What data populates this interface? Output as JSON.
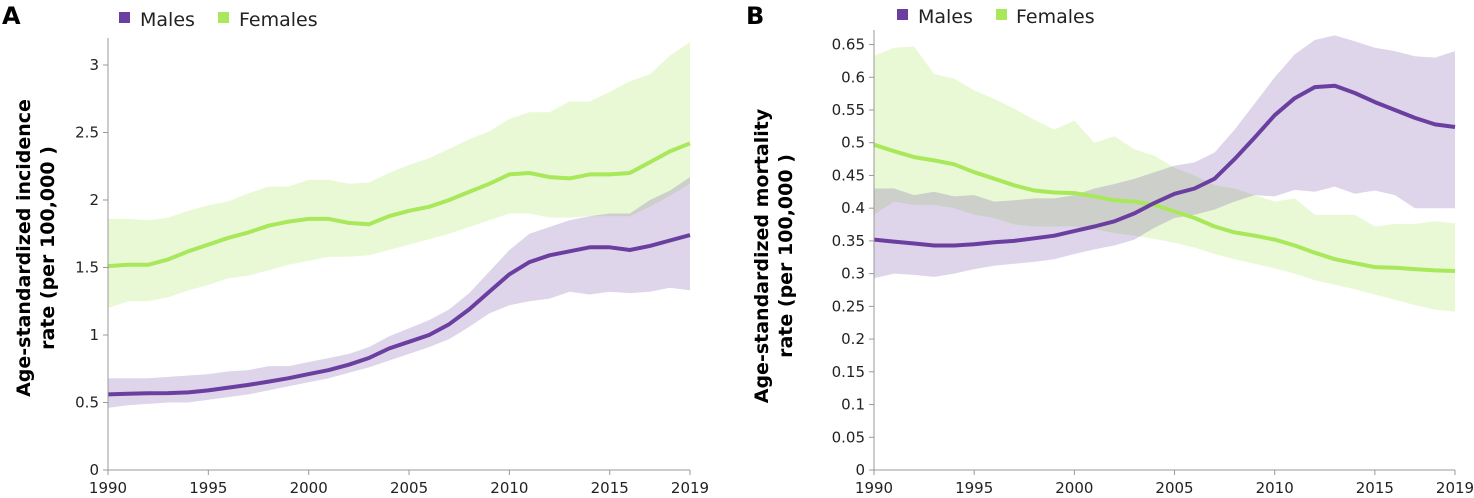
{
  "chart_data": [
    {
      "panel_label": "A",
      "type": "line",
      "ylabel": [
        "Age-standardized incidence",
        "rate (per 100,000 )"
      ],
      "ylim": [
        0,
        3.2
      ],
      "yticks": [
        "0",
        "0.5",
        "1",
        "1.5",
        "2",
        "2.5",
        "3"
      ],
      "xlim": [
        1990,
        2019
      ],
      "xticks": [
        "1990",
        "1995",
        "2000",
        "2005",
        "2010",
        "2015",
        "2019"
      ],
      "x": [
        1990,
        1991,
        1992,
        1993,
        1994,
        1995,
        1996,
        1997,
        1998,
        1999,
        2000,
        2001,
        2002,
        2003,
        2004,
        2005,
        2006,
        2007,
        2008,
        2009,
        2010,
        2011,
        2012,
        2013,
        2014,
        2015,
        2016,
        2017,
        2018,
        2019
      ],
      "series": [
        {
          "name": "Males",
          "color": "#6b3fa0",
          "values": [
            0.56,
            0.565,
            0.568,
            0.57,
            0.575,
            0.59,
            0.61,
            0.63,
            0.655,
            0.68,
            0.71,
            0.74,
            0.78,
            0.83,
            0.9,
            0.95,
            1.0,
            1.08,
            1.19,
            1.32,
            1.45,
            1.54,
            1.59,
            1.62,
            1.65,
            1.65,
            1.63,
            1.66,
            1.7,
            1.74
          ],
          "lower": [
            0.46,
            0.48,
            0.49,
            0.5,
            0.5,
            0.52,
            0.54,
            0.56,
            0.59,
            0.62,
            0.65,
            0.68,
            0.72,
            0.76,
            0.81,
            0.86,
            0.91,
            0.97,
            1.06,
            1.16,
            1.22,
            1.25,
            1.27,
            1.32,
            1.3,
            1.32,
            1.31,
            1.32,
            1.35,
            1.33
          ],
          "upper": [
            0.68,
            0.68,
            0.68,
            0.69,
            0.7,
            0.71,
            0.73,
            0.74,
            0.77,
            0.77,
            0.8,
            0.83,
            0.86,
            0.91,
            0.99,
            1.05,
            1.11,
            1.19,
            1.31,
            1.47,
            1.63,
            1.75,
            1.8,
            1.85,
            1.88,
            1.9,
            1.9,
            2.0,
            2.07,
            2.17
          ]
        },
        {
          "name": "Females",
          "color": "#a8e85a",
          "values": [
            1.51,
            1.52,
            1.52,
            1.56,
            1.62,
            1.67,
            1.72,
            1.76,
            1.81,
            1.84,
            1.86,
            1.86,
            1.83,
            1.82,
            1.88,
            1.92,
            1.95,
            2.0,
            2.06,
            2.12,
            2.19,
            2.2,
            2.17,
            2.16,
            2.19,
            2.19,
            2.2,
            2.28,
            2.36,
            2.42
          ],
          "lower": [
            1.2,
            1.25,
            1.25,
            1.28,
            1.33,
            1.37,
            1.42,
            1.44,
            1.48,
            1.52,
            1.55,
            1.58,
            1.58,
            1.59,
            1.63,
            1.67,
            1.71,
            1.75,
            1.8,
            1.85,
            1.9,
            1.9,
            1.87,
            1.87,
            1.88,
            1.88,
            1.88,
            1.95,
            2.03,
            2.12
          ],
          "upper": [
            1.86,
            1.86,
            1.85,
            1.87,
            1.92,
            1.96,
            1.99,
            2.05,
            2.1,
            2.1,
            2.15,
            2.15,
            2.12,
            2.13,
            2.2,
            2.26,
            2.31,
            2.38,
            2.45,
            2.51,
            2.6,
            2.65,
            2.65,
            2.73,
            2.73,
            2.8,
            2.88,
            2.93,
            3.07,
            3.17
          ]
        }
      ]
    },
    {
      "panel_label": "B",
      "type": "line",
      "ylabel": [
        "Age-standardized mortality",
        "rate (per 100,000 )"
      ],
      "ylim": [
        0,
        0.66
      ],
      "yticks": [
        "0",
        "0.05",
        "0.1",
        "0.15",
        "0.2",
        "0.25",
        "0.3",
        "0.35",
        "0.4",
        "0.45",
        "0.5",
        "0.55",
        "0.6",
        "0.65"
      ],
      "xlim": [
        1990,
        2019
      ],
      "xticks": [
        "1990",
        "1995",
        "2000",
        "2005",
        "2010",
        "2015",
        "2019"
      ],
      "x": [
        1990,
        1991,
        1992,
        1993,
        1994,
        1995,
        1996,
        1997,
        1998,
        1999,
        2000,
        2001,
        2002,
        2003,
        2004,
        2005,
        2006,
        2007,
        2008,
        2009,
        2010,
        2011,
        2012,
        2013,
        2014,
        2015,
        2016,
        2017,
        2018,
        2019
      ],
      "series": [
        {
          "name": "Males",
          "color": "#6b3fa0",
          "values": [
            0.352,
            0.349,
            0.346,
            0.343,
            0.343,
            0.345,
            0.348,
            0.35,
            0.354,
            0.358,
            0.365,
            0.372,
            0.38,
            0.392,
            0.408,
            0.422,
            0.43,
            0.445,
            0.475,
            0.508,
            0.542,
            0.568,
            0.585,
            0.587,
            0.576,
            0.562,
            0.55,
            0.538,
            0.528,
            0.524
          ],
          "lower": [
            0.293,
            0.3,
            0.298,
            0.295,
            0.3,
            0.307,
            0.312,
            0.315,
            0.318,
            0.322,
            0.33,
            0.337,
            0.343,
            0.352,
            0.37,
            0.385,
            0.39,
            0.398,
            0.41,
            0.42,
            0.418,
            0.428,
            0.425,
            0.433,
            0.422,
            0.427,
            0.42,
            0.4,
            0.4,
            0.4
          ],
          "upper": [
            0.43,
            0.43,
            0.42,
            0.425,
            0.418,
            0.42,
            0.41,
            0.412,
            0.415,
            0.415,
            0.42,
            0.43,
            0.437,
            0.445,
            0.455,
            0.465,
            0.47,
            0.485,
            0.52,
            0.56,
            0.6,
            0.635,
            0.657,
            0.664,
            0.655,
            0.645,
            0.64,
            0.632,
            0.63,
            0.64
          ]
        },
        {
          "name": "Females",
          "color": "#a8e85a",
          "values": [
            0.497,
            0.487,
            0.478,
            0.473,
            0.467,
            0.455,
            0.445,
            0.435,
            0.427,
            0.424,
            0.423,
            0.418,
            0.412,
            0.41,
            0.405,
            0.395,
            0.385,
            0.372,
            0.363,
            0.358,
            0.352,
            0.343,
            0.332,
            0.322,
            0.316,
            0.31,
            0.309,
            0.307,
            0.305,
            0.304
          ],
          "lower": [
            0.39,
            0.41,
            0.405,
            0.405,
            0.4,
            0.39,
            0.385,
            0.375,
            0.372,
            0.372,
            0.372,
            0.368,
            0.362,
            0.358,
            0.353,
            0.347,
            0.34,
            0.33,
            0.322,
            0.315,
            0.308,
            0.3,
            0.29,
            0.283,
            0.276,
            0.268,
            0.26,
            0.252,
            0.245,
            0.242
          ],
          "upper": [
            0.633,
            0.645,
            0.647,
            0.605,
            0.598,
            0.58,
            0.567,
            0.552,
            0.535,
            0.52,
            0.534,
            0.5,
            0.51,
            0.49,
            0.48,
            0.462,
            0.45,
            0.435,
            0.43,
            0.42,
            0.41,
            0.415,
            0.39,
            0.39,
            0.39,
            0.372,
            0.376,
            0.376,
            0.38,
            0.377
          ]
        }
      ]
    }
  ]
}
